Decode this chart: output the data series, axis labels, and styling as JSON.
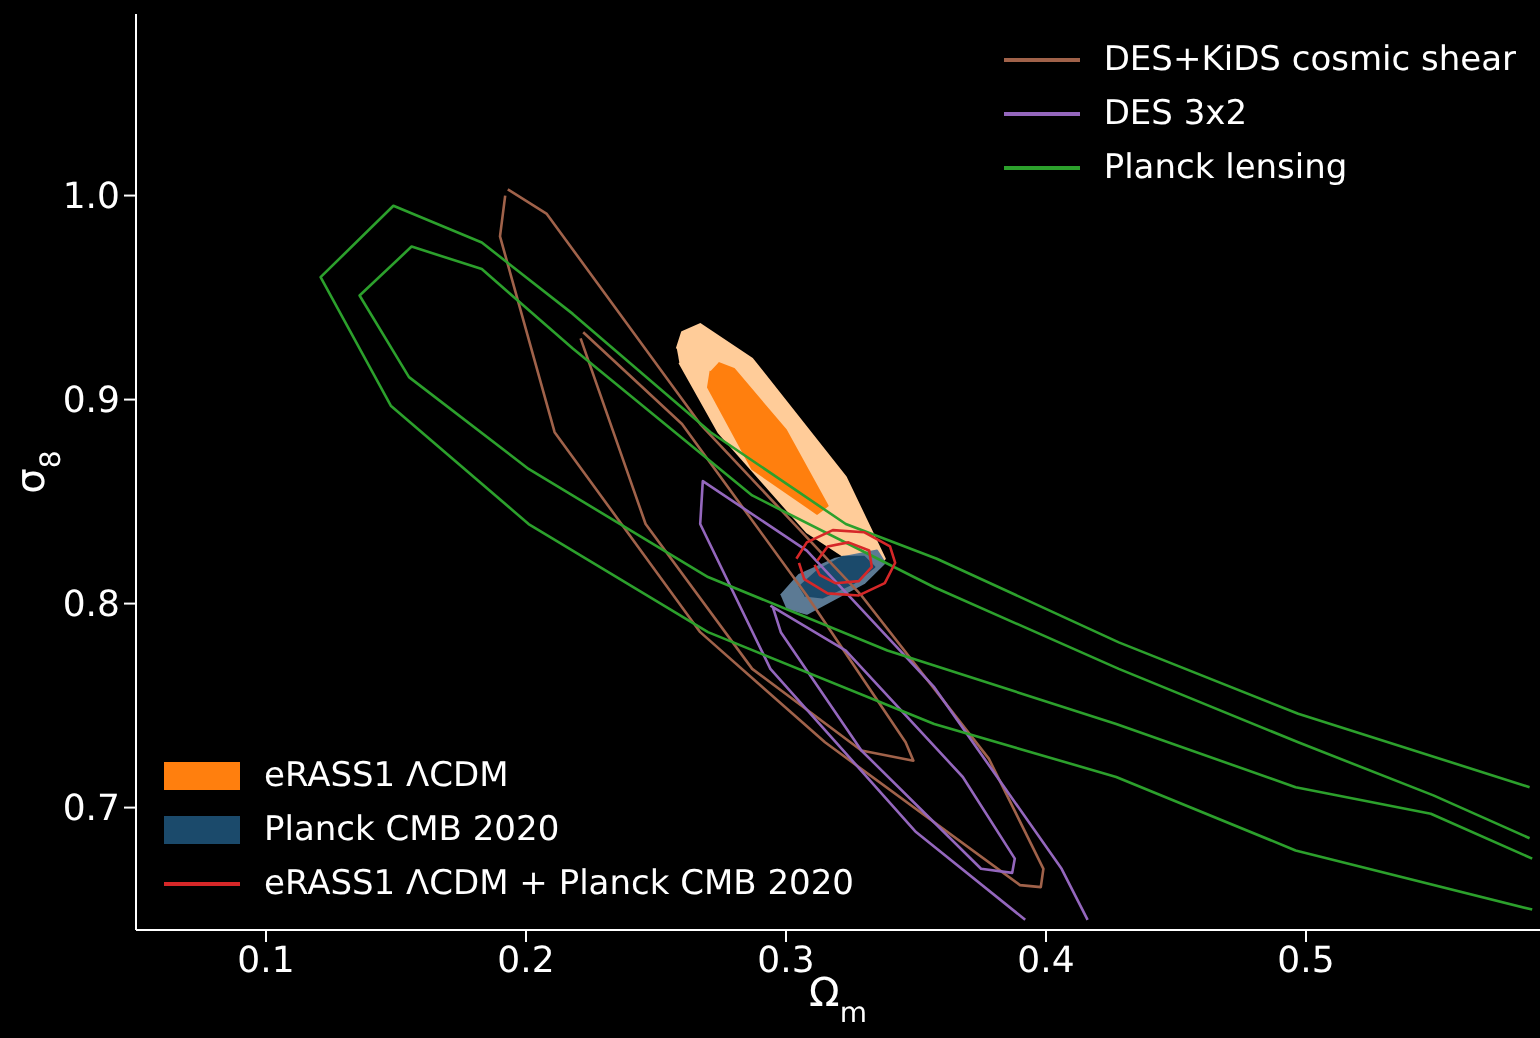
{
  "chart_data": {
    "type": "line",
    "xlabel": "Ω$_{m}$",
    "ylabel": "σ$_{8}$",
    "xlim": [
      0.05,
      0.59
    ],
    "ylim": [
      0.64,
      1.089
    ],
    "xticks": [
      0.1,
      0.2,
      0.3,
      0.4,
      0.5
    ],
    "yticks": [
      0.7,
      0.8,
      0.9,
      {
        "value": 1.0,
        "label": "1.0"
      }
    ],
    "grid": false,
    "legend": "top right",
    "series": [
      {
        "name": "DES+KiDS cosmic shear",
        "color": "#a0624a",
        "x": [
          0.193,
          0.208,
          0.267,
          0.329,
          0.378,
          0.399,
          0.398,
          0.39,
          0.315,
          0.267,
          0.211,
          0.19,
          0.192
        ],
        "values": [
          1.003,
          0.991,
          0.888,
          0.804,
          0.724,
          0.67,
          0.661,
          0.662,
          0.732,
          0.786,
          0.884,
          0.98,
          1.0
        ]
      },
      {
        "color": "#a0624a",
        "x": [
          0.222,
          0.26,
          0.308,
          0.346,
          0.349,
          0.329,
          0.287,
          0.246,
          0.221
        ],
        "values": [
          0.933,
          0.888,
          0.804,
          0.732,
          0.723,
          0.728,
          0.768,
          0.839,
          0.93
        ]
      },
      {
        "name": "DES 3x2",
        "color": "#9467bd",
        "x": [
          0.416,
          0.406,
          0.357,
          0.308,
          0.268,
          0.267,
          0.294,
          0.35,
          0.392
        ],
        "values": [
          0.645,
          0.67,
          0.759,
          0.826,
          0.86,
          0.839,
          0.768,
          0.688,
          0.645
        ]
      },
      {
        "color": "#9467bd",
        "x": [
          0.294,
          0.323,
          0.368,
          0.388,
          0.387,
          0.375,
          0.329,
          0.298,
          0.295
        ],
        "values": [
          0.799,
          0.777,
          0.715,
          0.675,
          0.668,
          0.67,
          0.728,
          0.786,
          0.798
        ]
      },
      {
        "name": "Planck lensing",
        "color": "#2ca02c",
        "x": [
          0.587,
          0.496,
          0.427,
          0.357,
          0.27,
          0.201,
          0.148,
          0.121,
          0.149,
          0.183,
          0.218,
          0.271,
          0.323,
          0.358,
          0.428,
          0.497,
          0.586
        ],
        "values": [
          0.65,
          0.679,
          0.715,
          0.741,
          0.786,
          0.839,
          0.897,
          0.96,
          0.995,
          0.977,
          0.942,
          0.884,
          0.839,
          0.822,
          0.781,
          0.746,
          0.71
        ]
      },
      {
        "color": "#2ca02c",
        "x": [
          0.587,
          0.548,
          0.496,
          0.427,
          0.339,
          0.27,
          0.201,
          0.155,
          0.136,
          0.156,
          0.183,
          0.218,
          0.287,
          0.357,
          0.428,
          0.497,
          0.549,
          0.586
        ],
        "values": [
          0.675,
          0.697,
          0.71,
          0.741,
          0.777,
          0.813,
          0.866,
          0.911,
          0.951,
          0.975,
          0.964,
          0.925,
          0.853,
          0.808,
          0.768,
          0.732,
          0.706,
          0.685
        ]
      },
      {
        "type": "area",
        "color": "#ffcc99",
        "x": [
          0.258,
          0.26,
          0.267,
          0.287,
          0.323,
          0.338,
          0.332,
          0.308,
          0.274,
          0.259
        ],
        "values": [
          0.925,
          0.933,
          0.937,
          0.92,
          0.862,
          0.822,
          0.815,
          0.835,
          0.884,
          0.918
        ]
      },
      {
        "type": "area",
        "name": "eRASS1 ΛCDM",
        "color": "#ff7f0e",
        "x": [
          0.274,
          0.28,
          0.3,
          0.316,
          0.312,
          0.287,
          0.27,
          0.271
        ],
        "values": [
          0.918,
          0.915,
          0.885,
          0.848,
          0.844,
          0.866,
          0.906,
          0.914
        ]
      },
      {
        "type": "area",
        "color": "#5c7a94",
        "x": [
          0.298,
          0.305,
          0.319,
          0.335,
          0.338,
          0.33,
          0.308,
          0.3
        ],
        "values": [
          0.804,
          0.814,
          0.822,
          0.826,
          0.82,
          0.81,
          0.795,
          0.798
        ]
      },
      {
        "type": "area",
        "name": "Planck CMB 2020",
        "color": "#1b4a6b",
        "x": [
          0.305,
          0.312,
          0.322,
          0.33,
          0.334,
          0.326,
          0.314,
          0.307
        ],
        "values": [
          0.808,
          0.816,
          0.823,
          0.823,
          0.818,
          0.81,
          0.803,
          0.804
        ]
      },
      {
        "name": "eRASS1 ΛCDM + Planck CMB 2020",
        "color": "#d62728",
        "x": [
          0.304,
          0.308,
          0.318,
          0.33,
          0.34,
          0.342,
          0.338,
          0.328,
          0.316,
          0.307,
          0.305
        ],
        "values": [
          0.822,
          0.83,
          0.836,
          0.835,
          0.828,
          0.82,
          0.81,
          0.804,
          0.805,
          0.812,
          0.82
        ]
      },
      {
        "color": "#d62728",
        "x": [
          0.312,
          0.316,
          0.324,
          0.332,
          0.333,
          0.328,
          0.319,
          0.313,
          0.311
        ],
        "values": [
          0.821,
          0.828,
          0.83,
          0.826,
          0.818,
          0.811,
          0.81,
          0.814,
          0.819
        ]
      }
    ]
  }
}
